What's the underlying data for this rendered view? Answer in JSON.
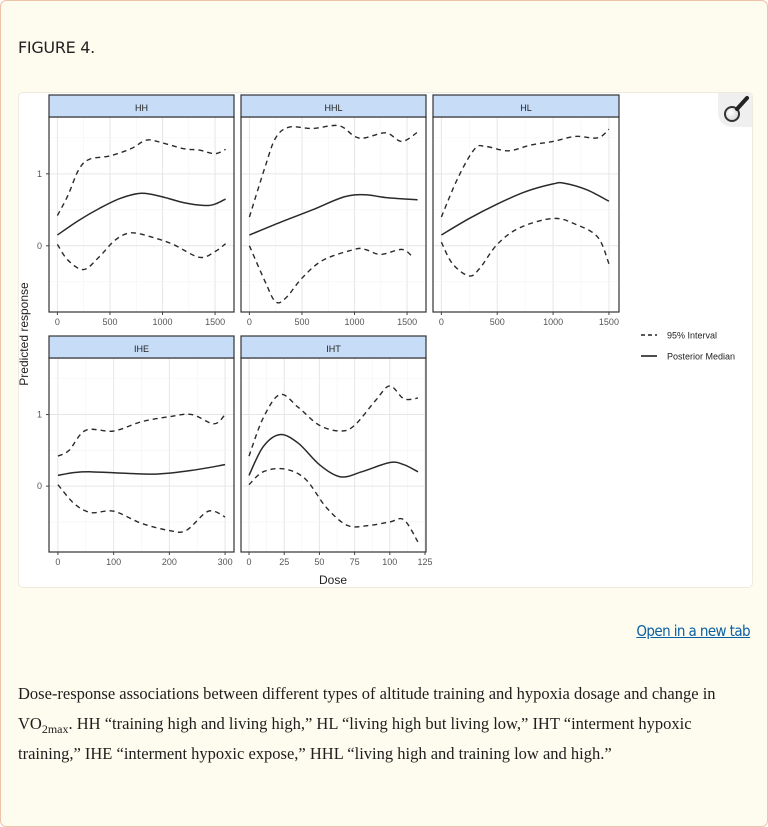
{
  "figure": {
    "title": "FIGURE 4.",
    "open_link": "Open in a new tab",
    "zoom_icon": "magnifier-icon",
    "caption": {
      "before": "Dose-response associations between different types of altitude training and hypoxia dosage and change in VO",
      "subscript": "2max",
      "after": ". HH “training high and living high,” HL “living high but living low,” IHT “interment hypoxic training,” IHE “interment hypoxic expose,” HHL “living high and training low and high.”"
    }
  },
  "chart_data": {
    "type": "line",
    "xlabel": "Dose",
    "ylabel": "Predicted response",
    "y_ticks": [
      "0",
      "1"
    ],
    "ylim": [
      -0.92,
      1.79
    ],
    "grid": true,
    "strip_color": "#c6dcf7",
    "legend": {
      "placement": "right",
      "entries": [
        {
          "label": "95% Interval",
          "style": "dashed"
        },
        {
          "label": "Posterior Median",
          "style": "solid"
        }
      ]
    },
    "panels": [
      {
        "name": "HH",
        "x_ticks": [
          "0",
          "500",
          "1000",
          "1500"
        ],
        "xlim": [
          -80,
          1680
        ],
        "median": [
          [
            0,
            0.15
          ],
          [
            200,
            0.35
          ],
          [
            400,
            0.52
          ],
          [
            600,
            0.66
          ],
          [
            800,
            0.73
          ],
          [
            1000,
            0.68
          ],
          [
            1200,
            0.6
          ],
          [
            1400,
            0.56
          ],
          [
            1500,
            0.58
          ],
          [
            1600,
            0.65
          ]
        ],
        "upper": [
          [
            0,
            0.42
          ],
          [
            100,
            0.7
          ],
          [
            200,
            1.05
          ],
          [
            300,
            1.2
          ],
          [
            500,
            1.25
          ],
          [
            700,
            1.35
          ],
          [
            850,
            1.47
          ],
          [
            1000,
            1.43
          ],
          [
            1200,
            1.35
          ],
          [
            1350,
            1.33
          ],
          [
            1500,
            1.28
          ],
          [
            1600,
            1.34
          ]
        ],
        "lower": [
          [
            0,
            0.02
          ],
          [
            100,
            -0.2
          ],
          [
            250,
            -0.33
          ],
          [
            400,
            -0.15
          ],
          [
            550,
            0.08
          ],
          [
            700,
            0.18
          ],
          [
            900,
            0.12
          ],
          [
            1100,
            0.02
          ],
          [
            1350,
            -0.16
          ],
          [
            1500,
            -0.08
          ],
          [
            1600,
            0.03
          ]
        ]
      },
      {
        "name": "HHL",
        "x_ticks": [
          "0",
          "500",
          "1000",
          "1500"
        ],
        "xlim": [
          -80,
          1680
        ],
        "median": [
          [
            0,
            0.15
          ],
          [
            300,
            0.33
          ],
          [
            600,
            0.5
          ],
          [
            900,
            0.68
          ],
          [
            1100,
            0.71
          ],
          [
            1300,
            0.67
          ],
          [
            1600,
            0.64
          ]
        ],
        "upper": [
          [
            0,
            0.4
          ],
          [
            150,
            1.1
          ],
          [
            250,
            1.5
          ],
          [
            380,
            1.65
          ],
          [
            600,
            1.63
          ],
          [
            850,
            1.67
          ],
          [
            1000,
            1.52
          ],
          [
            1100,
            1.5
          ],
          [
            1300,
            1.57
          ],
          [
            1450,
            1.45
          ],
          [
            1600,
            1.58
          ]
        ],
        "lower": [
          [
            0,
            0.0
          ],
          [
            150,
            -0.5
          ],
          [
            250,
            -0.78
          ],
          [
            350,
            -0.72
          ],
          [
            500,
            -0.45
          ],
          [
            700,
            -0.2
          ],
          [
            1000,
            -0.05
          ],
          [
            1100,
            -0.05
          ],
          [
            1250,
            -0.12
          ],
          [
            1450,
            -0.05
          ],
          [
            1550,
            -0.15
          ]
        ]
      },
      {
        "name": "HL",
        "x_ticks": [
          "0",
          "500",
          "1000",
          "1500"
        ],
        "xlim": [
          -75,
          1590
        ],
        "median": [
          [
            0,
            0.15
          ],
          [
            250,
            0.38
          ],
          [
            500,
            0.58
          ],
          [
            750,
            0.75
          ],
          [
            1000,
            0.86
          ],
          [
            1100,
            0.87
          ],
          [
            1300,
            0.78
          ],
          [
            1500,
            0.62
          ]
        ],
        "upper": [
          [
            0,
            0.4
          ],
          [
            150,
            0.95
          ],
          [
            300,
            1.35
          ],
          [
            400,
            1.38
          ],
          [
            600,
            1.32
          ],
          [
            800,
            1.4
          ],
          [
            1000,
            1.45
          ],
          [
            1200,
            1.52
          ],
          [
            1400,
            1.5
          ],
          [
            1500,
            1.62
          ]
        ],
        "lower": [
          [
            0,
            0.05
          ],
          [
            100,
            -0.25
          ],
          [
            250,
            -0.42
          ],
          [
            350,
            -0.3
          ],
          [
            500,
            0.02
          ],
          [
            700,
            0.25
          ],
          [
            1000,
            0.38
          ],
          [
            1200,
            0.3
          ],
          [
            1400,
            0.12
          ],
          [
            1500,
            -0.25
          ]
        ]
      },
      {
        "name": "IHE",
        "x_ticks": [
          "0",
          "100",
          "200",
          "300"
        ],
        "xlim": [
          -16,
          316
        ],
        "median": [
          [
            0,
            0.15
          ],
          [
            30,
            0.19
          ],
          [
            60,
            0.2
          ],
          [
            120,
            0.18
          ],
          [
            180,
            0.17
          ],
          [
            240,
            0.22
          ],
          [
            300,
            0.3
          ]
        ],
        "upper": [
          [
            0,
            0.42
          ],
          [
            20,
            0.5
          ],
          [
            50,
            0.78
          ],
          [
            100,
            0.77
          ],
          [
            150,
            0.9
          ],
          [
            200,
            0.97
          ],
          [
            240,
            1.0
          ],
          [
            280,
            0.87
          ],
          [
            300,
            1.0
          ]
        ],
        "lower": [
          [
            0,
            0.02
          ],
          [
            30,
            -0.25
          ],
          [
            60,
            -0.37
          ],
          [
            100,
            -0.35
          ],
          [
            150,
            -0.52
          ],
          [
            200,
            -0.62
          ],
          [
            230,
            -0.62
          ],
          [
            270,
            -0.35
          ],
          [
            300,
            -0.43
          ]
        ]
      },
      {
        "name": "IHT",
        "x_ticks": [
          "0",
          "25",
          "50",
          "75",
          "100",
          "125"
        ],
        "xlim": [
          -5.7,
          125.7
        ],
        "median": [
          [
            0,
            0.15
          ],
          [
            10,
            0.55
          ],
          [
            22,
            0.72
          ],
          [
            35,
            0.6
          ],
          [
            50,
            0.3
          ],
          [
            65,
            0.13
          ],
          [
            80,
            0.2
          ],
          [
            100,
            0.33
          ],
          [
            110,
            0.3
          ],
          [
            120,
            0.2
          ]
        ],
        "upper": [
          [
            0,
            0.42
          ],
          [
            10,
            0.95
          ],
          [
            22,
            1.28
          ],
          [
            35,
            1.1
          ],
          [
            50,
            0.85
          ],
          [
            65,
            0.77
          ],
          [
            75,
            0.85
          ],
          [
            90,
            1.2
          ],
          [
            100,
            1.4
          ],
          [
            110,
            1.22
          ],
          [
            120,
            1.23
          ]
        ],
        "lower": [
          [
            0,
            0.02
          ],
          [
            10,
            0.2
          ],
          [
            25,
            0.24
          ],
          [
            40,
            0.1
          ],
          [
            55,
            -0.3
          ],
          [
            70,
            -0.55
          ],
          [
            85,
            -0.55
          ],
          [
            100,
            -0.5
          ],
          [
            110,
            -0.47
          ],
          [
            120,
            -0.78
          ]
        ]
      }
    ]
  }
}
